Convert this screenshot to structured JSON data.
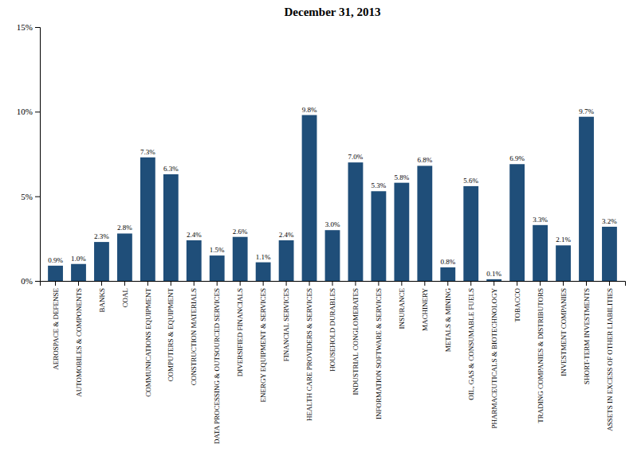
{
  "chart_data": {
    "type": "bar",
    "title": "December 31, 2013",
    "categories": [
      "AEROSPACE & DEFENSE",
      "AUTOMOBILES & COMPONENTS",
      "BANKS",
      "COAL",
      "COMMUNICATIONS EQUIPMENT",
      "COMPUTERS & EQUIPMENT",
      "CONSTRUCTION MATERIALS",
      "DATA PROCESSING & OUTSOURCED SERVICES",
      "DIVERSIFIED FINANCIALS",
      "ENERGY EQUIPMENT & SERVICES",
      "FINANCIAL SERVICES",
      "HEALTH CARE PROVIDERS & SERVICES",
      "HOUSEHOLD DURABLES",
      "INDUSTRIAL CONGLOMERATES",
      "INFORMATION SOFTWARE & SERVICES",
      "INSURANCE",
      "MACHINERY",
      "METALS & MINING",
      "OIL, GAS & CONSUMABLE FUELS",
      "PHARMACEUTICALS & BIOTECHNOLOGY",
      "TOBACCO",
      "TRADING COMPANIES & DISTRIBUTORS",
      "INVESTMENT COMPANIES",
      "SHORT-TERM INVESTMENTS",
      "ASSETS IN EXCESS OF OTHER LIABILITIES"
    ],
    "values": [
      0.9,
      1.0,
      2.3,
      2.8,
      7.3,
      6.3,
      2.4,
      1.5,
      2.6,
      1.1,
      2.4,
      9.8,
      3.0,
      7.0,
      5.3,
      5.8,
      6.8,
      0.8,
      5.6,
      0.1,
      6.9,
      3.3,
      2.1,
      9.7,
      3.2
    ],
    "value_labels": [
      "0.9%",
      "1.0%",
      "2.3%",
      "2.8%",
      "7.3%",
      "6.3%",
      "2.4%",
      "1.5%",
      "2.6%",
      "1.1%",
      "2.4%",
      "9.8%",
      "3.0%",
      "7.0%",
      "5.3%",
      "5.8%",
      "6.8%",
      "0.8%",
      "5.6%",
      "0.1%",
      "6.9%",
      "3.3%",
      "2.1%",
      "9.7%",
      "3.2%"
    ],
    "color": "#1f4e79",
    "ylim": [
      0,
      15
    ],
    "yticks": [
      {
        "value": 0,
        "label": "0%"
      },
      {
        "value": 5,
        "label": "5%"
      },
      {
        "value": 10,
        "label": "10%"
      },
      {
        "value": 15,
        "label": "15%"
      }
    ],
    "grid": false,
    "data_labels": true
  }
}
